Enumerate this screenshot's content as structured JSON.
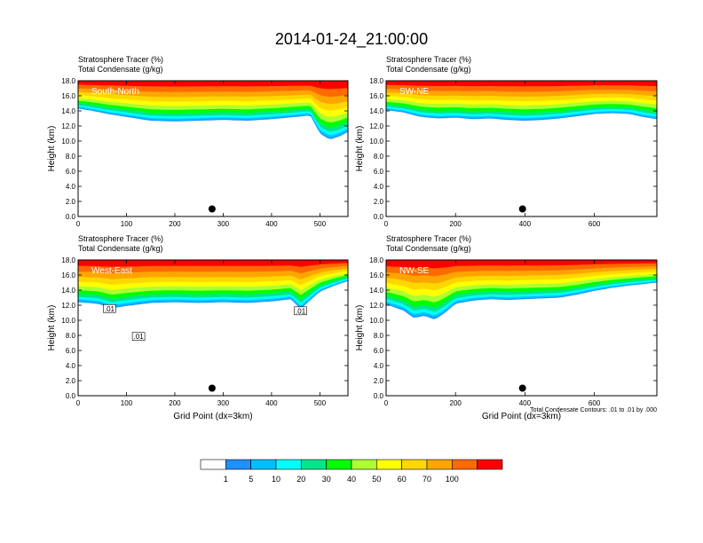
{
  "figure": {
    "title": "2014-01-24_21:00:00"
  },
  "chart_data": [
    {
      "type": "heatmap",
      "panel_label": "South-North",
      "title_lines": [
        "Stratosphere Tracer   (%)",
        "Total Condensate   (g/kg)"
      ],
      "ylabel": "Height (km)",
      "xlabel": "",
      "xlim": [
        0,
        558
      ],
      "ylim": [
        0,
        18
      ],
      "xticks": [
        "0",
        "100",
        "200",
        "300",
        "400",
        "500"
      ],
      "xtick_values": [
        0,
        100,
        200,
        300,
        400,
        500
      ],
      "yticks": [
        "0.0",
        "2.0",
        "4.0",
        "6.0",
        "8.0",
        "10.0",
        "12.0",
        "14.0",
        "16.0",
        "18.0"
      ],
      "tracer_base_km": {
        "x": [
          0,
          30,
          60,
          100,
          150,
          200,
          250,
          300,
          350,
          400,
          450,
          480,
          500,
          520,
          540,
          558
        ],
        "y": [
          14.3,
          14.0,
          13.6,
          13.2,
          12.7,
          12.6,
          12.7,
          12.8,
          12.7,
          12.9,
          13.2,
          13.4,
          11.0,
          10.2,
          10.6,
          11.2
        ]
      },
      "marker": {
        "x": 277,
        "y": 1.0
      }
    },
    {
      "type": "heatmap",
      "panel_label": "SW-NE",
      "title_lines": [
        "Stratosphere Tracer   (%)",
        "Total Condensate   (g/kg)"
      ],
      "ylabel": "Height (km)",
      "xlabel": "",
      "xlim": [
        0,
        780
      ],
      "ylim": [
        0,
        18
      ],
      "xticks": [
        "0",
        "200",
        "400",
        "600"
      ],
      "xtick_values": [
        0,
        200,
        400,
        600
      ],
      "yticks": [
        "0.0",
        "2.0",
        "4.0",
        "6.0",
        "8.0",
        "10.0",
        "12.0",
        "14.0",
        "16.0",
        "18.0"
      ],
      "tracer_base_km": {
        "x": [
          0,
          50,
          100,
          150,
          200,
          250,
          300,
          350,
          400,
          450,
          500,
          550,
          600,
          650,
          700,
          740,
          780
        ],
        "y": [
          14.1,
          13.8,
          13.2,
          13.0,
          13.1,
          12.9,
          13.0,
          12.8,
          12.7,
          12.8,
          13.0,
          13.3,
          13.6,
          13.7,
          13.6,
          13.2,
          12.9
        ]
      },
      "marker": {
        "x": 393,
        "y": 1.0
      }
    },
    {
      "type": "heatmap",
      "panel_label": "West-East",
      "title_lines": [
        "Stratosphere Tracer   (%)",
        "Total Condensate   (g/kg)"
      ],
      "ylabel": "Height (km)",
      "xlabel": "Grid Point (dx=3km)",
      "xlim": [
        0,
        558
      ],
      "ylim": [
        0,
        18
      ],
      "xticks": [
        "0",
        "100",
        "200",
        "300",
        "400",
        "500"
      ],
      "xtick_values": [
        0,
        100,
        200,
        300,
        400,
        500
      ],
      "yticks": [
        "0.0",
        "2.0",
        "4.0",
        "6.0",
        "8.0",
        "10.0",
        "12.0",
        "14.0",
        "16.0",
        "18.0"
      ],
      "tracer_base_km": {
        "x": [
          0,
          40,
          70,
          100,
          150,
          200,
          250,
          300,
          350,
          400,
          440,
          460,
          500,
          530,
          558
        ],
        "y": [
          12.4,
          12.2,
          11.6,
          11.9,
          12.3,
          12.4,
          12.3,
          12.4,
          12.3,
          12.5,
          12.8,
          11.5,
          13.8,
          14.6,
          15.2
        ]
      },
      "contour_labels": [
        {
          "text": ".01",
          "x": 65,
          "y": 11.5
        },
        {
          "text": ".01",
          "x": 125,
          "y": 7.8
        },
        {
          "text": ".01",
          "x": 460,
          "y": 11.2
        }
      ],
      "marker": {
        "x": 277,
        "y": 1.0
      }
    },
    {
      "type": "heatmap",
      "panel_label": "NW-SE",
      "title_lines": [
        "Stratosphere Tracer   (%)",
        "Total Condensate   (g/kg)"
      ],
      "ylabel": "Height (km)",
      "xlabel": "Grid Point (dx=3km)",
      "xlim": [
        0,
        780
      ],
      "ylim": [
        0,
        18
      ],
      "xticks": [
        "0",
        "200",
        "400",
        "600"
      ],
      "xtick_values": [
        0,
        200,
        400,
        600
      ],
      "yticks": [
        "0.0",
        "2.0",
        "4.0",
        "6.0",
        "8.0",
        "10.0",
        "12.0",
        "14.0",
        "16.0",
        "18.0"
      ],
      "tracer_base_km": {
        "x": [
          0,
          50,
          80,
          110,
          140,
          170,
          200,
          250,
          300,
          350,
          400,
          450,
          500,
          550,
          600,
          650,
          700,
          740,
          780
        ],
        "y": [
          12.1,
          11.3,
          10.3,
          10.6,
          10.1,
          11.0,
          12.2,
          12.6,
          12.8,
          12.7,
          12.8,
          12.9,
          13.0,
          13.4,
          13.9,
          14.3,
          14.6,
          14.8,
          15.0
        ]
      },
      "footnote": "Total Condensate Contours: .01 to .01 by .000",
      "marker": {
        "x": 393,
        "y": 1.0
      }
    }
  ],
  "colorbar": {
    "labels": [
      "1",
      "5",
      "10",
      "20",
      "30",
      "40",
      "50",
      "60",
      "70",
      "100"
    ],
    "colors": [
      "#ffffff",
      "#1e90ff",
      "#00bfff",
      "#00ffff",
      "#00e68a",
      "#00ff00",
      "#adff2f",
      "#ffff00",
      "#ffd700",
      "#ffa500",
      "#ff6a00",
      "#ff0000"
    ]
  },
  "tracer_band_colors": [
    "#1e90ff",
    "#00bfff",
    "#00ffff",
    "#00e68a",
    "#00ff00",
    "#adff2f",
    "#ffff00",
    "#ffd700",
    "#ffa500",
    "#ff6a00",
    "#ff0000"
  ]
}
